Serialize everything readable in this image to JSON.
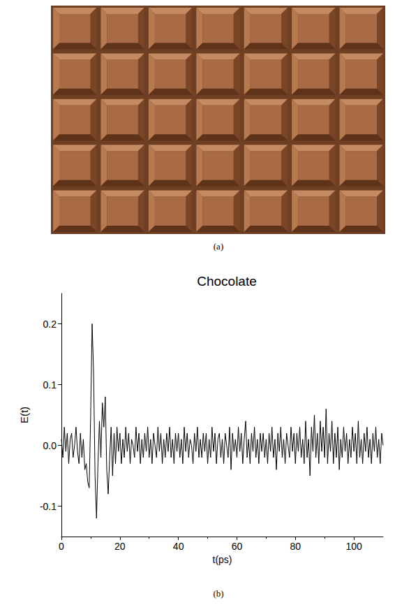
{
  "panels": {
    "a": {
      "caption": "(a)"
    },
    "b": {
      "caption": "(b)"
    }
  },
  "chart_data": {
    "type": "line",
    "title": "Chocolate",
    "x_label": "t(ps)",
    "y_label": "E(t)",
    "color": "#000000",
    "grid": false,
    "xlim": [
      0,
      110
    ],
    "xticks": [
      0,
      20,
      40,
      60,
      80,
      100
    ],
    "ylim": [
      -0.15,
      0.25
    ],
    "yticks": [
      -0.1,
      {
        "value": 0,
        "label": "0.0"
      },
      0.1,
      0.2
    ],
    "x": [
      0,
      0.5,
      1,
      1.5,
      2,
      2.5,
      3,
      3.5,
      4,
      4.5,
      5,
      5.5,
      6,
      6.5,
      7,
      7.5,
      8,
      8.5,
      9,
      9.5,
      10,
      10.5,
      11,
      11.5,
      12,
      12.5,
      13,
      13.5,
      14,
      14.5,
      15,
      15.5,
      16,
      16.5,
      17,
      17.5,
      18,
      18.5,
      19,
      19.5,
      20,
      20.5,
      21,
      21.5,
      22,
      22.5,
      23,
      23.5,
      24,
      24.5,
      25,
      25.5,
      26,
      26.5,
      27,
      27.5,
      28,
      28.5,
      29,
      29.5,
      30,
      30.5,
      31,
      31.5,
      32,
      32.5,
      33,
      33.5,
      34,
      34.5,
      35,
      35.5,
      36,
      36.5,
      37,
      37.5,
      38,
      38.5,
      39,
      39.5,
      40,
      40.5,
      41,
      41.5,
      42,
      42.5,
      43,
      43.5,
      44,
      44.5,
      45,
      45.5,
      46,
      46.5,
      47,
      47.5,
      48,
      48.5,
      49,
      49.5,
      50,
      50.5,
      51,
      51.5,
      52,
      52.5,
      53,
      53.5,
      54,
      54.5,
      55,
      55.5,
      56,
      56.5,
      57,
      57.5,
      58,
      58.5,
      59,
      59.5,
      60,
      60.5,
      61,
      61.5,
      62,
      62.5,
      63,
      63.5,
      64,
      64.5,
      65,
      65.5,
      66,
      66.5,
      67,
      67.5,
      68,
      68.5,
      69,
      69.5,
      70,
      70.5,
      71,
      71.5,
      72,
      72.5,
      73,
      73.5,
      74,
      74.5,
      75,
      75.5,
      76,
      76.5,
      77,
      77.5,
      78,
      78.5,
      79,
      79.5,
      80,
      80.5,
      81,
      81.5,
      82,
      82.5,
      83,
      83.5,
      84,
      84.5,
      85,
      85.5,
      86,
      86.5,
      87,
      87.5,
      88,
      88.5,
      89,
      89.5,
      90,
      90.5,
      91,
      91.5,
      92,
      92.5,
      93,
      93.5,
      94,
      94.5,
      95,
      95.5,
      96,
      96.5,
      97,
      97.5,
      98,
      98.5,
      99,
      99.5,
      100,
      100.5,
      101,
      101.5,
      102,
      102.5,
      103,
      103.5,
      104,
      104.5,
      105,
      105.5,
      106,
      106.5,
      107,
      107.5,
      108,
      108.5,
      109,
      109.5,
      110
    ],
    "values": [
      0.01,
      -0.02,
      0.03,
      -0.01,
      0.02,
      -0.03,
      0.01,
      0.02,
      -0.02,
      0.0,
      0.03,
      -0.01,
      -0.03,
      0.02,
      -0.02,
      0.01,
      -0.04,
      -0.03,
      -0.06,
      -0.07,
      0.05,
      0.2,
      0.12,
      -0.05,
      -0.12,
      -0.03,
      0.04,
      -0.02,
      0.07,
      0.03,
      0.08,
      -0.04,
      -0.08,
      -0.02,
      0.03,
      -0.05,
      0.02,
      -0.03,
      0.03,
      -0.01,
      0.02,
      -0.03,
      0.01,
      -0.02,
      0.03,
      -0.01,
      0.02,
      -0.03,
      0.01,
      0.0,
      -0.02,
      0.03,
      -0.01,
      0.02,
      -0.03,
      0.01,
      -0.02,
      0.02,
      -0.01,
      0.03,
      -0.02,
      0.01,
      -0.03,
      0.02,
      0.0,
      -0.02,
      0.03,
      -0.01,
      0.02,
      -0.03,
      0.01,
      -0.02,
      0.02,
      -0.01,
      0.03,
      -0.02,
      0.01,
      -0.03,
      0.02,
      -0.01,
      0.02,
      -0.02,
      0.01,
      -0.03,
      0.03,
      -0.01,
      0.02,
      -0.02,
      0.01,
      0.0,
      -0.03,
      0.02,
      -0.01,
      0.03,
      -0.02,
      0.01,
      -0.02,
      0.02,
      -0.01,
      0.02,
      -0.03,
      0.01,
      -0.02,
      0.03,
      -0.01,
      0.02,
      -0.03,
      0.01,
      0.02,
      -0.02,
      0.01,
      -0.03,
      0.02,
      0.0,
      -0.02,
      0.03,
      -0.04,
      0.02,
      -0.01,
      0.01,
      -0.02,
      0.03,
      -0.01,
      0.02,
      -0.03,
      0.01,
      0.04,
      -0.02,
      0.01,
      -0.03,
      0.02,
      -0.01,
      0.03,
      -0.02,
      0.01,
      -0.03,
      0.02,
      -0.01,
      0.02,
      -0.02,
      0.01,
      -0.03,
      0.02,
      -0.01,
      0.03,
      -0.02,
      0.01,
      -0.04,
      0.02,
      -0.01,
      0.03,
      -0.02,
      0.01,
      -0.03,
      0.02,
      0.0,
      -0.02,
      0.03,
      -0.01,
      0.02,
      -0.03,
      0.02,
      -0.01,
      0.03,
      -0.02,
      0.01,
      -0.03,
      0.04,
      -0.02,
      0.01,
      -0.05,
      0.03,
      -0.01,
      0.05,
      -0.02,
      0.02,
      -0.03,
      0.04,
      -0.01,
      0.03,
      -0.02,
      0.06,
      -0.03,
      0.02,
      -0.01,
      0.04,
      -0.03,
      0.02,
      -0.02,
      0.03,
      -0.04,
      0.01,
      -0.02,
      0.03,
      -0.01,
      0.02,
      -0.03,
      0.01,
      -0.02,
      0.03,
      -0.01,
      0.02,
      -0.03,
      0.04,
      -0.02,
      0.01,
      -0.03,
      0.02,
      -0.01,
      0.03,
      -0.02,
      0.01,
      -0.03,
      0.02,
      -0.01,
      0.03,
      -0.02,
      0.01,
      -0.03,
      0.02,
      0.0
    ]
  }
}
